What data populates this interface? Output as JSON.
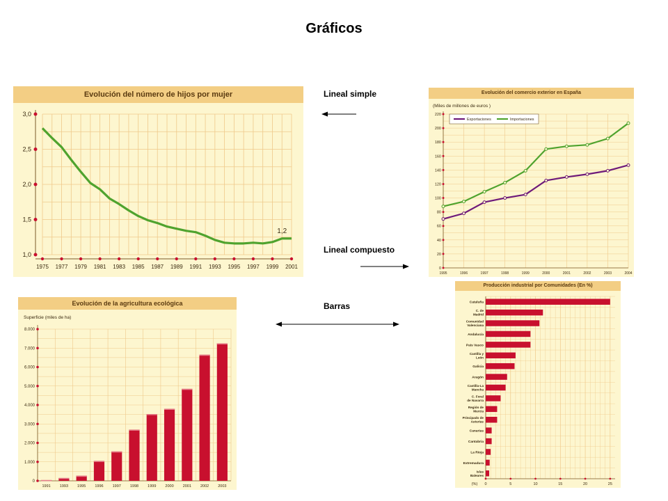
{
  "slide": {
    "title": "Gráficos",
    "labels": {
      "line_simple": "Lineal simple",
      "line_compound": "Lineal compuesto",
      "bars": "Barras"
    }
  },
  "colors": {
    "panel_bg": "#fdf6cf",
    "header_bg": "#f3ce84",
    "grid": "#efc98a",
    "green": "#4fa32e",
    "purple": "#6e1a7a",
    "red": "#c8102e",
    "axis_dot": "#c8102e"
  },
  "chart_data": [
    {
      "id": "children",
      "type": "line",
      "title": "Evolución del número de hijos por mujer",
      "xlabel": "",
      "ylabel": "",
      "x": [
        1975,
        1976,
        1977,
        1978,
        1979,
        1980,
        1981,
        1982,
        1983,
        1984,
        1985,
        1986,
        1987,
        1988,
        1989,
        1990,
        1991,
        1992,
        1993,
        1994,
        1995,
        1996,
        1997,
        1998,
        1999,
        2000,
        2001
      ],
      "values": [
        2.8,
        2.66,
        2.53,
        2.35,
        2.18,
        2.02,
        1.93,
        1.8,
        1.72,
        1.63,
        1.55,
        1.49,
        1.45,
        1.4,
        1.37,
        1.34,
        1.32,
        1.27,
        1.21,
        1.17,
        1.16,
        1.16,
        1.17,
        1.16,
        1.18,
        1.23,
        1.23
      ],
      "xticks": [
        "1975",
        "1977",
        "1979",
        "1981",
        "1983",
        "1985",
        "1987",
        "1989",
        "1991",
        "1993",
        "1995",
        "1997",
        "1999",
        "2001"
      ],
      "yticks": [
        "1,0",
        "1,5",
        "2,0",
        "2,5",
        "3,0"
      ],
      "ylim": [
        1.0,
        3.0
      ],
      "annotations": [
        "1,2"
      ],
      "grid": true
    },
    {
      "id": "trade",
      "type": "line",
      "title": "Evolución del comercio exterior en España",
      "ylabel": "(Miles de millones de euros )",
      "x": [
        1995,
        1996,
        1997,
        1998,
        1999,
        2000,
        2001,
        2002,
        2003,
        2004
      ],
      "xticks": [
        "1995",
        "1996",
        "1997",
        "1998",
        "1999",
        "2000",
        "2001",
        "2002",
        "2003",
        "2004"
      ],
      "yticks": [
        "0",
        "20",
        "40",
        "60",
        "80",
        "100",
        "120",
        "140",
        "160",
        "180",
        "200",
        "220"
      ],
      "ylim": [
        0,
        220
      ],
      "series": [
        {
          "name": "Exportaciones",
          "values": [
            70,
            78,
            94,
            100,
            105,
            125,
            130,
            134,
            139,
            147
          ]
        },
        {
          "name": "Importaciones",
          "values": [
            88,
            95,
            109,
            122,
            139,
            170,
            174,
            176,
            185,
            207
          ]
        }
      ],
      "legend": "top-left",
      "grid": true
    },
    {
      "id": "eco",
      "type": "bar",
      "title": "Evolución de la agricultura ecológica",
      "ylabel": "Superficie (miles de ha)",
      "categories": [
        "1991",
        "1993",
        "1995",
        "1996",
        "1997",
        "1998",
        "1999",
        "2000",
        "2001",
        "2002",
        "2003"
      ],
      "values": [
        40,
        150,
        270,
        1050,
        1550,
        2700,
        3520,
        3800,
        4850,
        6650,
        7250
      ],
      "yticks": [
        "0",
        "1.000",
        "2.000",
        "3.000",
        "4.000",
        "5.000",
        "6.000",
        "7.000",
        "8.000"
      ],
      "ylim": [
        0,
        8000
      ],
      "grid": true
    },
    {
      "id": "industry",
      "type": "bar",
      "orientation": "horizontal",
      "title": "Producción industrial por Comunidades (En %)",
      "categories": [
        "Cataluña",
        "C. de Madrid",
        "Comunidad Valenciana",
        "Andalucía",
        "País Vasco",
        "Castilla y León",
        "Galicia",
        "Aragón",
        "Castilla-La Mancha",
        "C. Foral de Navarra",
        "Región de Murcia",
        "Principado de Asturias",
        "Canarias",
        "Cantabria",
        "La Rioja",
        "Extremadura",
        "Islas Baleares"
      ],
      "values": [
        25,
        11.5,
        10.8,
        9,
        9,
        6,
        5.8,
        4.3,
        4,
        3,
        2.3,
        2.3,
        1.2,
        1.2,
        1,
        0.8,
        0.7
      ],
      "xticks": [
        "0",
        "5",
        "10",
        "15",
        "20",
        "25"
      ],
      "xlabel": "(%)",
      "xlim": [
        0,
        26
      ],
      "grid": true
    }
  ]
}
